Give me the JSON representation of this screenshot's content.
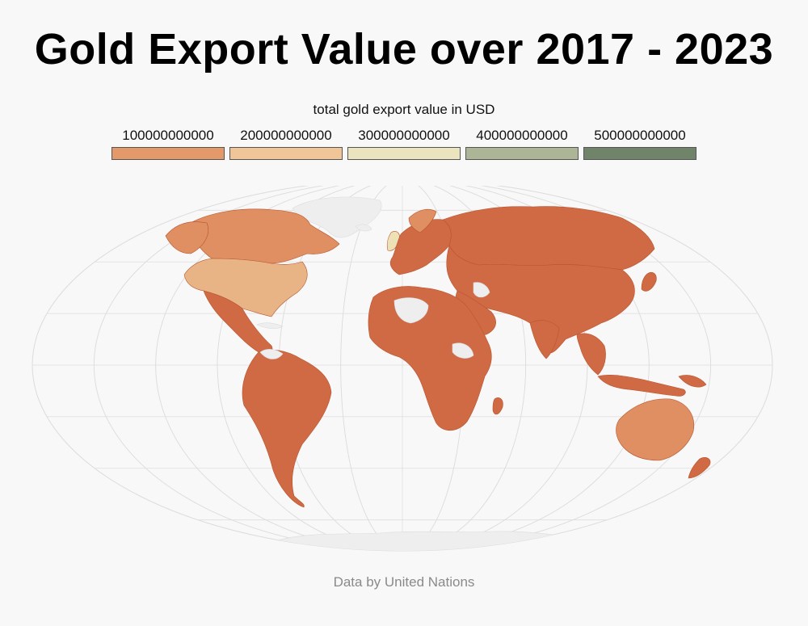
{
  "title": "Gold Export Value over 2017 - 2023",
  "legend": {
    "title": "total gold export value in USD",
    "items": [
      {
        "label": "100000000000",
        "color": "#e4996b"
      },
      {
        "label": "200000000000",
        "color": "#f0c597"
      },
      {
        "label": "300000000000",
        "color": "#ebe5bf"
      },
      {
        "label": "400000000000",
        "color": "#adb597"
      },
      {
        "label": "500000000000",
        "color": "#6f8469"
      }
    ]
  },
  "caption": "Data by United Nations",
  "map": {
    "projection": "mollweide",
    "graticule": true,
    "colors": {
      "low": "#d06a45",
      "mid_low": "#df8f62",
      "usa": "#e9b485",
      "uk": "#ede2b6",
      "no_data": "#eeeeee",
      "graticule": "#dddddd",
      "border": "#b8542f"
    }
  }
}
